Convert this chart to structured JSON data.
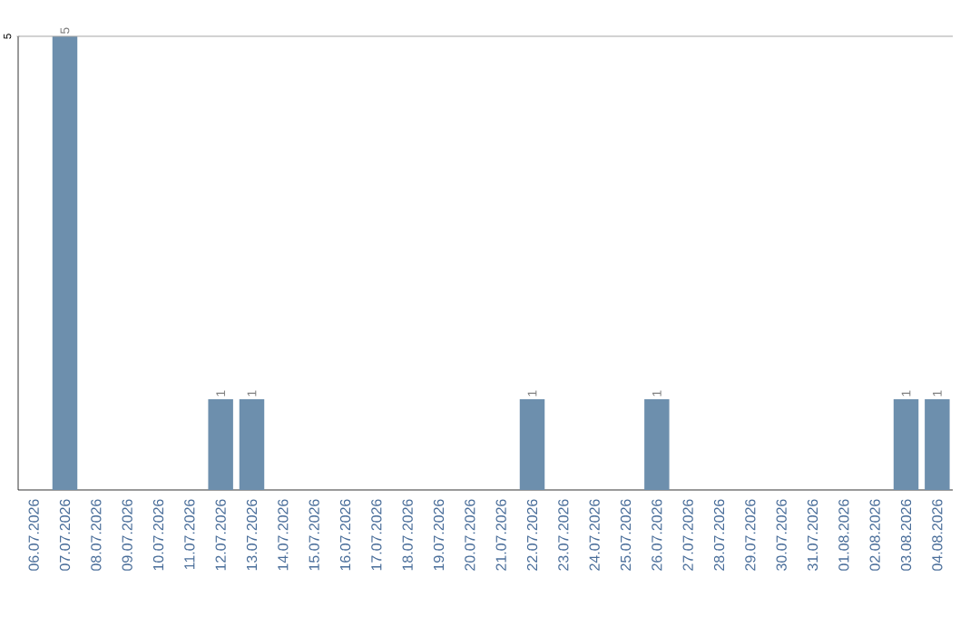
{
  "chart_data": {
    "type": "bar",
    "categories": [
      "06.07.2026",
      "07.07.2026",
      "08.07.2026",
      "09.07.2026",
      "10.07.2026",
      "11.07.2026",
      "12.07.2026",
      "13.07.2026",
      "14.07.2026",
      "15.07.2026",
      "16.07.2026",
      "17.07.2026",
      "18.07.2026",
      "19.07.2026",
      "20.07.2026",
      "21.07.2026",
      "22.07.2026",
      "23.07.2026",
      "24.07.2026",
      "25.07.2026",
      "26.07.2026",
      "27.07.2026",
      "28.07.2026",
      "29.07.2026",
      "30.07.2026",
      "31.07.2026",
      "01.08.2026",
      "02.08.2026",
      "03.08.2026",
      "04.08.2026"
    ],
    "values": [
      0,
      5,
      0,
      0,
      0,
      0,
      1,
      1,
      0,
      0,
      0,
      0,
      0,
      0,
      0,
      0,
      1,
      0,
      0,
      0,
      1,
      0,
      0,
      0,
      0,
      0,
      0,
      0,
      1,
      1
    ],
    "value_labels": [
      null,
      "5",
      null,
      null,
      null,
      null,
      "1",
      "1",
      null,
      null,
      null,
      null,
      null,
      null,
      null,
      null,
      "1",
      null,
      null,
      null,
      "1",
      null,
      null,
      null,
      null,
      null,
      null,
      null,
      "1",
      "1"
    ],
    "color": "#6d8fad",
    "ylim": [
      0,
      5
    ],
    "yticks": [
      5
    ]
  }
}
